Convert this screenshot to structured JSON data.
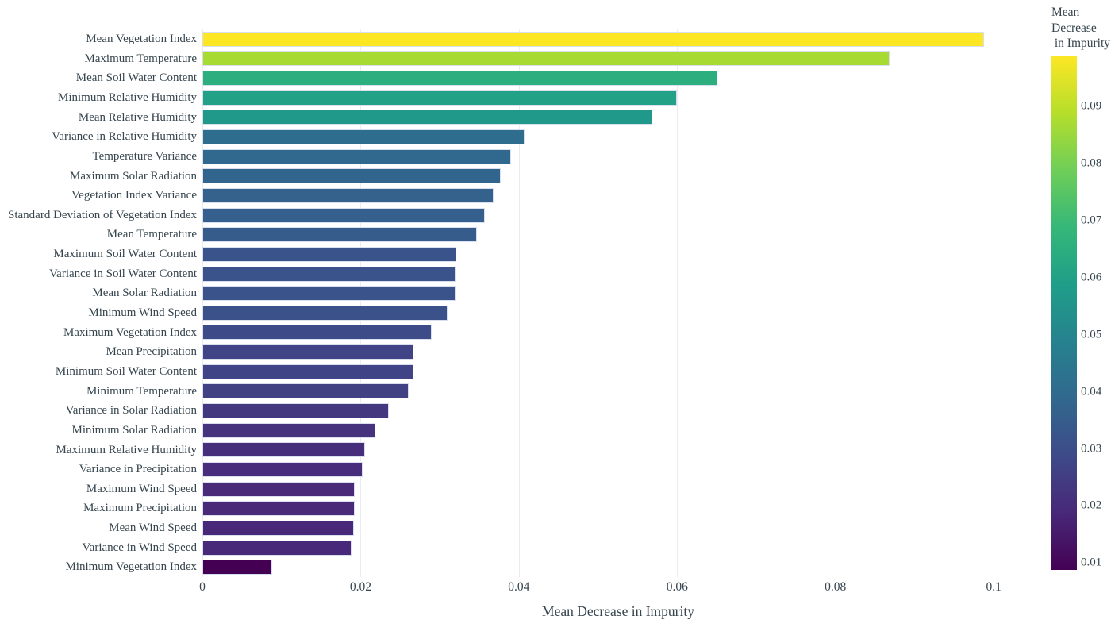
{
  "figure": {
    "background": "#ffffff",
    "text_color": "#36454e",
    "grid_color": "#e9edf3",
    "bar_border_color": "#d9dfef"
  },
  "chart_data": {
    "type": "bar",
    "orientation": "horizontal",
    "title": "",
    "xlabel": "Mean Decrease in Impurity",
    "ylabel": "",
    "grid": true,
    "xlim": [
      0,
      0.1051
    ],
    "categories": [
      "Mean Vegetation Index",
      "Maximum Temperature",
      "Mean Soil Water Content",
      "Minimum Relative Humidity",
      "Mean Relative Humidity",
      "Variance in Relative Humidity",
      "Temperature Variance",
      "Maximum Solar Radiation",
      "Vegetation Index Variance",
      "Standard Deviation of Vegetation Index",
      "Mean Temperature",
      "Maximum Soil Water Content",
      "Variance in Soil Water Content",
      "Mean Solar Radiation",
      "Minimum Wind Speed",
      "Maximum Vegetation Index",
      "Mean Precipitation",
      "Minimum Soil Water Content",
      "Minimum Temperature",
      "Variance in Solar Radiation",
      "Minimum Solar Radiation",
      "Maximum Relative Humidity",
      "Variance in Precipitation",
      "Maximum Wind Speed",
      "Maximum Precipitation",
      "Mean Wind Speed",
      "Variance in Wind Speed",
      "Minimum Vegetation Index"
    ],
    "values": [
      0.0988,
      0.0868,
      0.0651,
      0.06,
      0.0569,
      0.0407,
      0.039,
      0.0377,
      0.0368,
      0.0357,
      0.0347,
      0.0321,
      0.032,
      0.032,
      0.031,
      0.029,
      0.0267,
      0.0267,
      0.0261,
      0.0236,
      0.0219,
      0.0206,
      0.0203,
      0.0193,
      0.0193,
      0.0192,
      0.0189,
      0.0088
    ],
    "x_ticks": [
      {
        "label": "0",
        "value": 0
      },
      {
        "label": "0.02",
        "value": 0.02
      },
      {
        "label": "0.04",
        "value": 0.04
      },
      {
        "label": "0.06",
        "value": 0.06
      },
      {
        "label": "0.08",
        "value": 0.08
      },
      {
        "label": "0.1",
        "value": 0.1
      }
    ],
    "colormap": "viridis",
    "color_domain": [
      0.0088,
      0.0988
    ],
    "viridis_stops": [
      "#440154",
      "#482878",
      "#3e4a89",
      "#31688e",
      "#26828e",
      "#1f9e89",
      "#35b779",
      "#6ece58",
      "#b5de2b",
      "#fde725"
    ],
    "colorbar": {
      "title_lines": [
        "Mean",
        "Decrease",
        " in Impurity"
      ],
      "ticks": [
        {
          "label": "0.09",
          "value": 0.09
        },
        {
          "label": "0.08",
          "value": 0.08
        },
        {
          "label": "0.07",
          "value": 0.07
        },
        {
          "label": "0.06",
          "value": 0.06
        },
        {
          "label": "0.05",
          "value": 0.05
        },
        {
          "label": "0.04",
          "value": 0.04
        },
        {
          "label": "0.03",
          "value": 0.03
        },
        {
          "label": "0.02",
          "value": 0.02
        },
        {
          "label": "0.01",
          "value": 0.01
        }
      ]
    },
    "legend_position": "right-colorbar"
  }
}
